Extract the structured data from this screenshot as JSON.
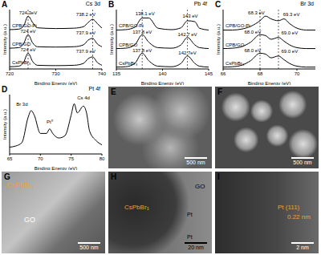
{
  "chart_data": [
    {
      "panel": "A",
      "type": "line",
      "title": "Cs 3d",
      "x_label": "Binding Energy (eV)",
      "y_label": "Intensity (a.u.)",
      "tick_labels": "x",
      "x": [
        720,
        722,
        723,
        724,
        725,
        726,
        730,
        734,
        736,
        737,
        738,
        739,
        740
      ],
      "xlim": [
        720,
        740
      ],
      "xticks": [
        720,
        730,
        740
      ],
      "ylim": [
        0,
        3.2
      ],
      "series": [
        {
          "name": "CPB/GO-Pt",
          "color": "#000000",
          "values": [
            2.12,
            2.15,
            2.3,
            2.85,
            2.5,
            2.22,
            2.18,
            2.2,
            2.28,
            2.5,
            2.68,
            2.45,
            2.2
          ]
        },
        {
          "name": "CPB/GO",
          "color": "#000000",
          "values": [
            1.12,
            1.15,
            1.35,
            1.85,
            1.4,
            1.2,
            1.18,
            1.2,
            1.3,
            1.55,
            1.65,
            1.35,
            1.2
          ]
        },
        {
          "name": "CsPbBr₃",
          "color": "#000000",
          "values": [
            0.12,
            0.15,
            0.35,
            0.85,
            0.4,
            0.2,
            0.18,
            0.2,
            0.3,
            0.55,
            0.65,
            0.35,
            0.2
          ]
        }
      ],
      "reference_lines": [
        724,
        738
      ],
      "annotations": [
        {
          "text": "724.3eV",
          "x": 724,
          "y": 3.05
        },
        {
          "text": "738.2 eV",
          "x": 736.5,
          "y": 2.95
        },
        {
          "text": "724 eV",
          "x": 724,
          "y": 2.05
        },
        {
          "text": "737.9 eV",
          "x": 736.5,
          "y": 1.95
        },
        {
          "text": "724 eV",
          "x": 724,
          "y": 1.05
        },
        {
          "text": "737.9 eV",
          "x": 736.5,
          "y": 0.95
        }
      ]
    },
    {
      "panel": "B",
      "type": "line",
      "title": "Pb 4f",
      "x_label": "Binding Energy (eV)",
      "y_label": "Intensity (a.u.)",
      "tick_labels": "x",
      "x": [
        135,
        136,
        137,
        137.8,
        138.5,
        139.5,
        141,
        142,
        142.7,
        143.5,
        144,
        145
      ],
      "xlim": [
        135,
        145
      ],
      "xticks": [
        135,
        140,
        145
      ],
      "ylim": [
        0,
        3.2
      ],
      "series": [
        {
          "name": "CPB/GO-Pt",
          "color": "#000000",
          "values": [
            2.1,
            2.12,
            2.25,
            2.75,
            2.75,
            2.2,
            2.12,
            2.22,
            2.6,
            2.55,
            2.2,
            2.1
          ]
        },
        {
          "name": "CPB/GO",
          "color": "#000000",
          "values": [
            1.1,
            1.12,
            1.3,
            1.85,
            1.45,
            1.15,
            1.12,
            1.3,
            1.7,
            1.3,
            1.15,
            1.1
          ]
        },
        {
          "name": "CsPbBr₃",
          "color": "#000000",
          "values": [
            0.1,
            0.12,
            0.3,
            0.85,
            0.45,
            0.15,
            0.12,
            0.3,
            0.7,
            0.3,
            0.15,
            0.1
          ]
        }
      ],
      "reference_lines": [
        137.8,
        142.7
      ],
      "annotations": [
        {
          "text": "138.1 eV",
          "x": 138.1,
          "y": 3.0
        },
        {
          "text": "143 eV",
          "x": 143,
          "y": 2.85
        },
        {
          "text": "137.8 eV",
          "x": 137.8,
          "y": 2.0
        },
        {
          "text": "142.7 eV",
          "x": 142.7,
          "y": 1.85
        },
        {
          "text": "137.8 eV",
          "x": 137.8,
          "y": 1.0
        },
        {
          "text": "142.7eV",
          "x": 142.7,
          "y": 0.85
        }
      ]
    },
    {
      "panel": "C",
      "type": "line",
      "title": "Br 3d",
      "x_label": "Binding Energy (eV)",
      "y_label": "Intensity (a.u.)",
      "tick_labels": "x",
      "x": [
        66,
        66.5,
        67,
        67.5,
        68,
        68.3,
        68.6,
        69,
        69.3,
        69.6,
        70,
        70.5,
        71
      ],
      "xlim": [
        66,
        71
      ],
      "xticks": [
        66,
        68,
        70
      ],
      "ylim": [
        0,
        3.2
      ],
      "series": [
        {
          "name": "CPB/GO-Pt",
          "color": "#000000",
          "values": [
            2.1,
            2.1,
            2.15,
            2.3,
            2.6,
            2.85,
            2.7,
            2.6,
            2.7,
            2.45,
            2.2,
            2.1,
            2.1
          ]
        },
        {
          "name": "CPB/GO",
          "color": "#000000",
          "values": [
            1.1,
            1.12,
            1.2,
            1.45,
            1.85,
            1.8,
            1.6,
            1.7,
            1.5,
            1.3,
            1.15,
            1.1,
            1.1
          ]
        },
        {
          "name": "CsPbBr₃",
          "color": "#000000",
          "values": [
            0.1,
            0.12,
            0.2,
            0.45,
            0.85,
            0.8,
            0.6,
            0.7,
            0.5,
            0.3,
            0.15,
            0.1,
            0.1
          ]
        }
      ],
      "reference_lines": [
        68,
        69
      ],
      "annotations": [
        {
          "text": "68.3 eV",
          "x": 67.8,
          "y": 3.05
        },
        {
          "text": "69.3 eV",
          "x": 69.7,
          "y": 2.95
        },
        {
          "text": "68.0 eV",
          "x": 67.6,
          "y": 2.0
        },
        {
          "text": "69.0 eV",
          "x": 69.6,
          "y": 1.95
        },
        {
          "text": "68.0 eV",
          "x": 67.6,
          "y": 1.0
        },
        {
          "text": "69.0 eV",
          "x": 69.6,
          "y": 0.95
        }
      ]
    },
    {
      "panel": "D",
      "type": "line",
      "title": "Pt 4f",
      "x_label": "Binding Energy (eV)",
      "y_label": "Intensity (a.u.)",
      "tick_labels": "x",
      "x": [
        65,
        66,
        67,
        68,
        68.5,
        69,
        70,
        71,
        71.5,
        72,
        73,
        74,
        75,
        75.5,
        76,
        77,
        77.5,
        78,
        79,
        80
      ],
      "xlim": [
        65,
        80
      ],
      "xticks": [
        65,
        70,
        75,
        80
      ],
      "ylim": [
        0,
        2.6
      ],
      "series": [
        {
          "color": "#000000",
          "values": [
            0.3,
            0.35,
            0.5,
            1.6,
            1.9,
            1.7,
            0.9,
            0.9,
            1.1,
            0.9,
            0.7,
            0.8,
            1.7,
            2.2,
            1.8,
            2.1,
            1.8,
            1.0,
            0.6,
            0.4
          ]
        }
      ],
      "reference_lines": [],
      "annotations": [
        {
          "text": "Br 3d",
          "x": 67,
          "y": 2.2
        },
        {
          "text": "Pt⁰",
          "x": 71.5,
          "y": 1.4
        },
        {
          "text": "Cs 4d",
          "x": 77,
          "y": 2.45
        }
      ]
    }
  ],
  "images": [
    {
      "panel": "E",
      "scale_bar": "500 nm",
      "labels": []
    },
    {
      "panel": "F",
      "scale_bar": "500 nm",
      "labels": []
    },
    {
      "panel": "G",
      "scale_bar": "500 nm",
      "labels": [
        "CsPbBr₃",
        "GO"
      ]
    },
    {
      "panel": "H",
      "scale_bar": "20 nm",
      "labels": [
        "CsPbBr₃",
        "GO",
        "Pt",
        "Pt"
      ]
    },
    {
      "panel": "I",
      "scale_bar": "2 nm",
      "labels": [
        "Pt (111)",
        "0.22 nm"
      ]
    }
  ]
}
